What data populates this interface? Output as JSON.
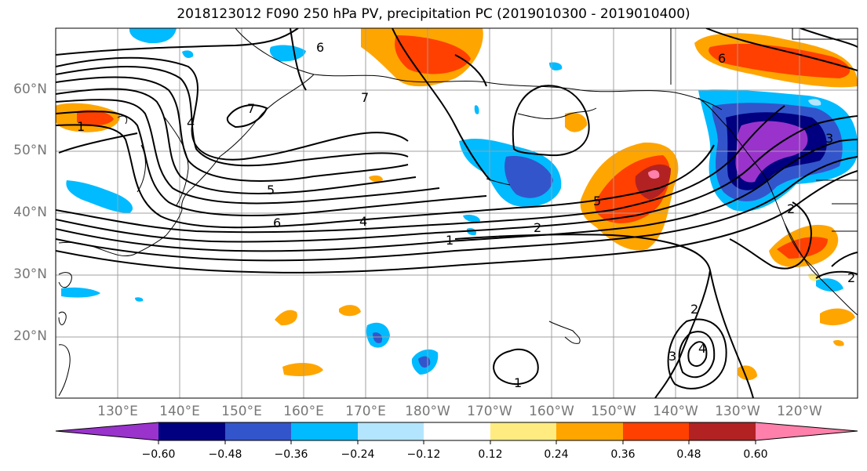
{
  "title": "2018123012 F090 250 hPa PV, precipitation PC (2019010300 - 2019010400)",
  "map": {
    "lat_labels": [
      "60°N",
      "50°N",
      "40°N",
      "30°N",
      "20°N"
    ],
    "lon_labels": [
      "130°E",
      "140°E",
      "150°E",
      "160°E",
      "170°E",
      "180°W",
      "170°W",
      "160°W",
      "150°W",
      "140°W",
      "130°W",
      "120°W"
    ],
    "contour_labels": [
      "1",
      "7",
      "7",
      "4",
      "5",
      "6",
      "4",
      "1",
      "2",
      "5",
      "3",
      "1",
      "2",
      "2",
      "6",
      "6",
      "3",
      "4",
      "2"
    ]
  },
  "colorbar": {
    "tick_labels": [
      "−0.60",
      "−0.48",
      "−0.36",
      "−0.24",
      "−0.12",
      "0.12",
      "0.24",
      "0.36",
      "0.48",
      "0.60"
    ],
    "colors": [
      "#9933cc",
      "#000080",
      "#3355cc",
      "#00bbff",
      "#b3e5ff",
      "#ffffff",
      "#ffeb80",
      "#ffa500",
      "#ff4000",
      "#b22222",
      "#ff80aa"
    ]
  }
}
